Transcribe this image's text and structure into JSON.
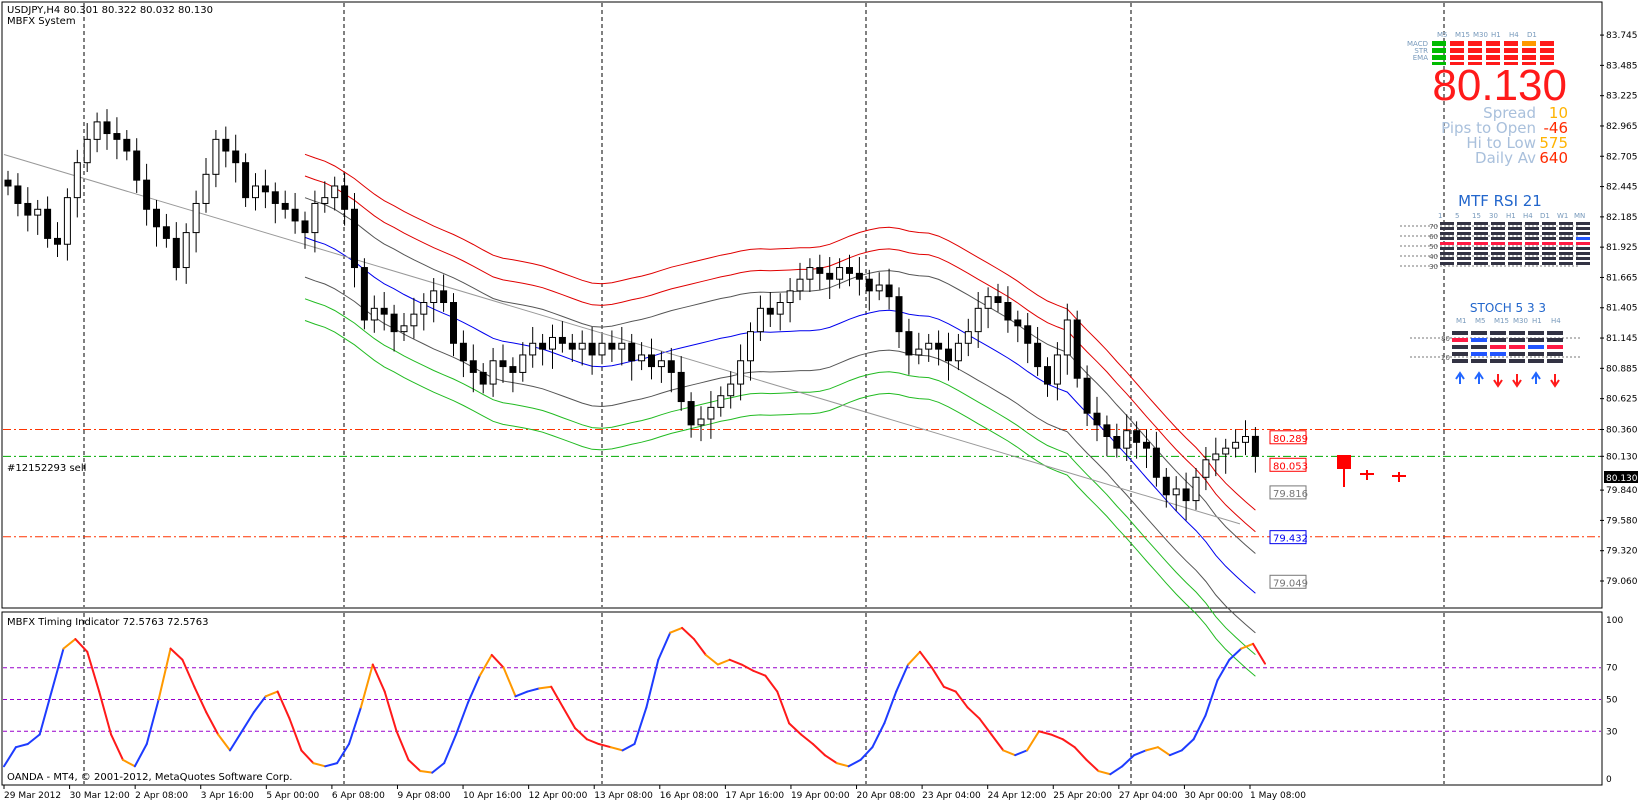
{
  "header": {
    "symbol_line": "USDJPY,H4  80.301 80.322 80.032 80.130",
    "system_name": "MBFX System",
    "timing_label": "MBFX Timing Indicator 72.5763 72.5763",
    "copyright": "OANDA - MT4, © 2001-2012, MetaQuotes Software Corp.",
    "order_label": "#12152293 sell"
  },
  "colors": {
    "bull_candle": "#ffffff",
    "bear_candle": "#000000",
    "env_outer": "#e00000",
    "env_inner_lower": "#22bb22",
    "env_mid": "#555555",
    "mid_blue": "#0000ee",
    "order_line": "#ff3300",
    "price_line": "#00aa00",
    "timing_up": "#1e3cff",
    "timing_down": "#ff1a1a",
    "timing_turn": "#ff9900",
    "level_line": "#9900cc"
  },
  "chart_data": [
    {
      "type": "candlestick",
      "title": "USDJPY,H4",
      "ylim": [
        79.06,
        83.78
      ],
      "y_ticks": [
        "83.745",
        "83.485",
        "83.225",
        "82.965",
        "82.705",
        "82.445",
        "82.185",
        "81.925",
        "81.665",
        "81.405",
        "81.145",
        "80.885",
        "80.625",
        "80.360",
        "80.130",
        "79.840",
        "79.580",
        "79.320",
        "79.060"
      ],
      "x_ticks": [
        "29 Mar 2012",
        "30 Mar 12:00",
        "2 Apr 08:00",
        "3 Apr 16:00",
        "5 Apr 00:00",
        "6 Apr 08:00",
        "9 Apr 08:00",
        "10 Apr 16:00",
        "12 Apr 00:00",
        "13 Apr 08:00",
        "16 Apr 08:00",
        "17 Apr 16:00",
        "19 Apr 00:00",
        "20 Apr 08:00",
        "23 Apr 04:00",
        "24 Apr 12:00",
        "25 Apr 20:00",
        "27 Apr 04:00",
        "30 Apr 00:00",
        "1 May 08:00"
      ],
      "current_price": "80.130",
      "last_bar": {
        "open": 80.301,
        "high": 80.322,
        "low": 80.032,
        "close": 80.13
      },
      "level_labels": [
        {
          "text": "80.289",
          "price": 80.289,
          "style": "red"
        },
        {
          "text": "80.053",
          "price": 80.053,
          "style": "red"
        },
        {
          "text": "79.816",
          "price": 79.816,
          "style": "gray"
        },
        {
          "text": "79.432",
          "price": 79.432,
          "style": "blue"
        },
        {
          "text": "79.049",
          "price": 79.049,
          "style": "gray"
        }
      ],
      "order_levels": [
        80.36,
        79.44
      ],
      "closes": [
        82.45,
        82.3,
        82.2,
        82.25,
        82.0,
        81.95,
        82.35,
        82.65,
        82.85,
        83.0,
        82.9,
        82.85,
        82.75,
        82.5,
        82.25,
        82.1,
        82.0,
        81.75,
        82.05,
        82.3,
        82.55,
        82.85,
        82.75,
        82.65,
        82.35,
        82.45,
        82.4,
        82.3,
        82.25,
        82.15,
        82.05,
        82.3,
        82.35,
        82.45,
        82.25,
        81.75,
        81.3,
        81.4,
        81.35,
        81.2,
        81.25,
        81.35,
        81.45,
        81.55,
        81.45,
        81.1,
        80.95,
        80.85,
        80.75,
        80.95,
        80.9,
        80.85,
        81.0,
        81.1,
        81.05,
        81.15,
        81.1,
        81.05,
        81.1,
        81.0,
        81.1,
        81.05,
        81.1,
        80.95,
        81.0,
        80.9,
        80.95,
        80.85,
        80.6,
        80.4,
        80.45,
        80.55,
        80.65,
        80.75,
        80.95,
        81.2,
        81.4,
        81.35,
        81.45,
        81.55,
        81.65,
        81.75,
        81.7,
        81.65,
        81.75,
        81.7,
        81.65,
        81.55,
        81.6,
        81.5,
        81.2,
        81.0,
        81.05,
        81.1,
        81.05,
        80.95,
        81.1,
        81.2,
        81.4,
        81.5,
        81.45,
        81.3,
        81.25,
        81.1,
        80.9,
        80.75,
        81.0,
        81.3,
        80.8,
        80.5,
        80.4,
        80.3,
        80.2,
        80.35,
        80.25,
        80.2,
        79.95,
        79.8,
        79.85,
        79.75,
        79.95,
        80.1,
        80.15,
        80.2,
        80.25,
        80.3,
        80.13
      ]
    },
    {
      "type": "line",
      "title": "MBFX Timing Indicator 72.5763 72.5763",
      "ylim": [
        0,
        100
      ],
      "y_ticks": [
        "100",
        "70",
        "50",
        "30",
        "0"
      ],
      "levels": [
        70,
        50,
        30
      ],
      "values": [
        8,
        20,
        22,
        28,
        55,
        82,
        88,
        80,
        55,
        28,
        12,
        8,
        22,
        50,
        82,
        75,
        58,
        42,
        28,
        18,
        30,
        42,
        52,
        55,
        38,
        18,
        10,
        8,
        10,
        22,
        45,
        72,
        55,
        30,
        12,
        5,
        4,
        10,
        28,
        48,
        65,
        78,
        70,
        52,
        55,
        57,
        58,
        45,
        32,
        25,
        22,
        20,
        18,
        22,
        45,
        75,
        92,
        95,
        88,
        78,
        72,
        75,
        72,
        68,
        65,
        55,
        35,
        28,
        22,
        15,
        10,
        8,
        12,
        20,
        35,
        55,
        72,
        80,
        70,
        58,
        55,
        45,
        38,
        28,
        18,
        15,
        18,
        30,
        28,
        25,
        20,
        12,
        5,
        3,
        8,
        15,
        18,
        20,
        15,
        18,
        25,
        40,
        62,
        75,
        82,
        85,
        72.58
      ]
    }
  ],
  "widgets": {
    "signal_panel": {
      "timeframes": [
        "M5",
        "M15",
        "M30",
        "H1",
        "H4",
        "D1"
      ],
      "rows": [
        "MACD",
        "STR",
        "EMA"
      ],
      "price": "80.130",
      "stats": [
        {
          "label": "Spread",
          "value": "10",
          "value_color": "#ffb300"
        },
        {
          "label": "Pips to Open",
          "value": "-46",
          "value_color": "#ff2a00"
        },
        {
          "label": "Hi to Low",
          "value": "575",
          "value_color": "#ffb300"
        },
        {
          "label": "Daily Av",
          "value": "640",
          "value_color": "#ff2a00"
        }
      ]
    },
    "mtf_rsi": {
      "title": "MTF RSI  21",
      "timeframes": [
        "1",
        "5",
        "15",
        "30",
        "H1",
        "H4",
        "D1",
        "W1",
        "MN"
      ],
      "levels": [
        "70",
        "60",
        "50",
        "40",
        "30"
      ]
    },
    "stoch": {
      "title": "STOCH  5 3 3",
      "timeframes": [
        "M1",
        "M5",
        "M15",
        "M30",
        "H1",
        "H4"
      ],
      "levels": [
        "80",
        "20"
      ],
      "arrows": [
        "up",
        "up",
        "down",
        "down",
        "up",
        "down"
      ]
    }
  }
}
